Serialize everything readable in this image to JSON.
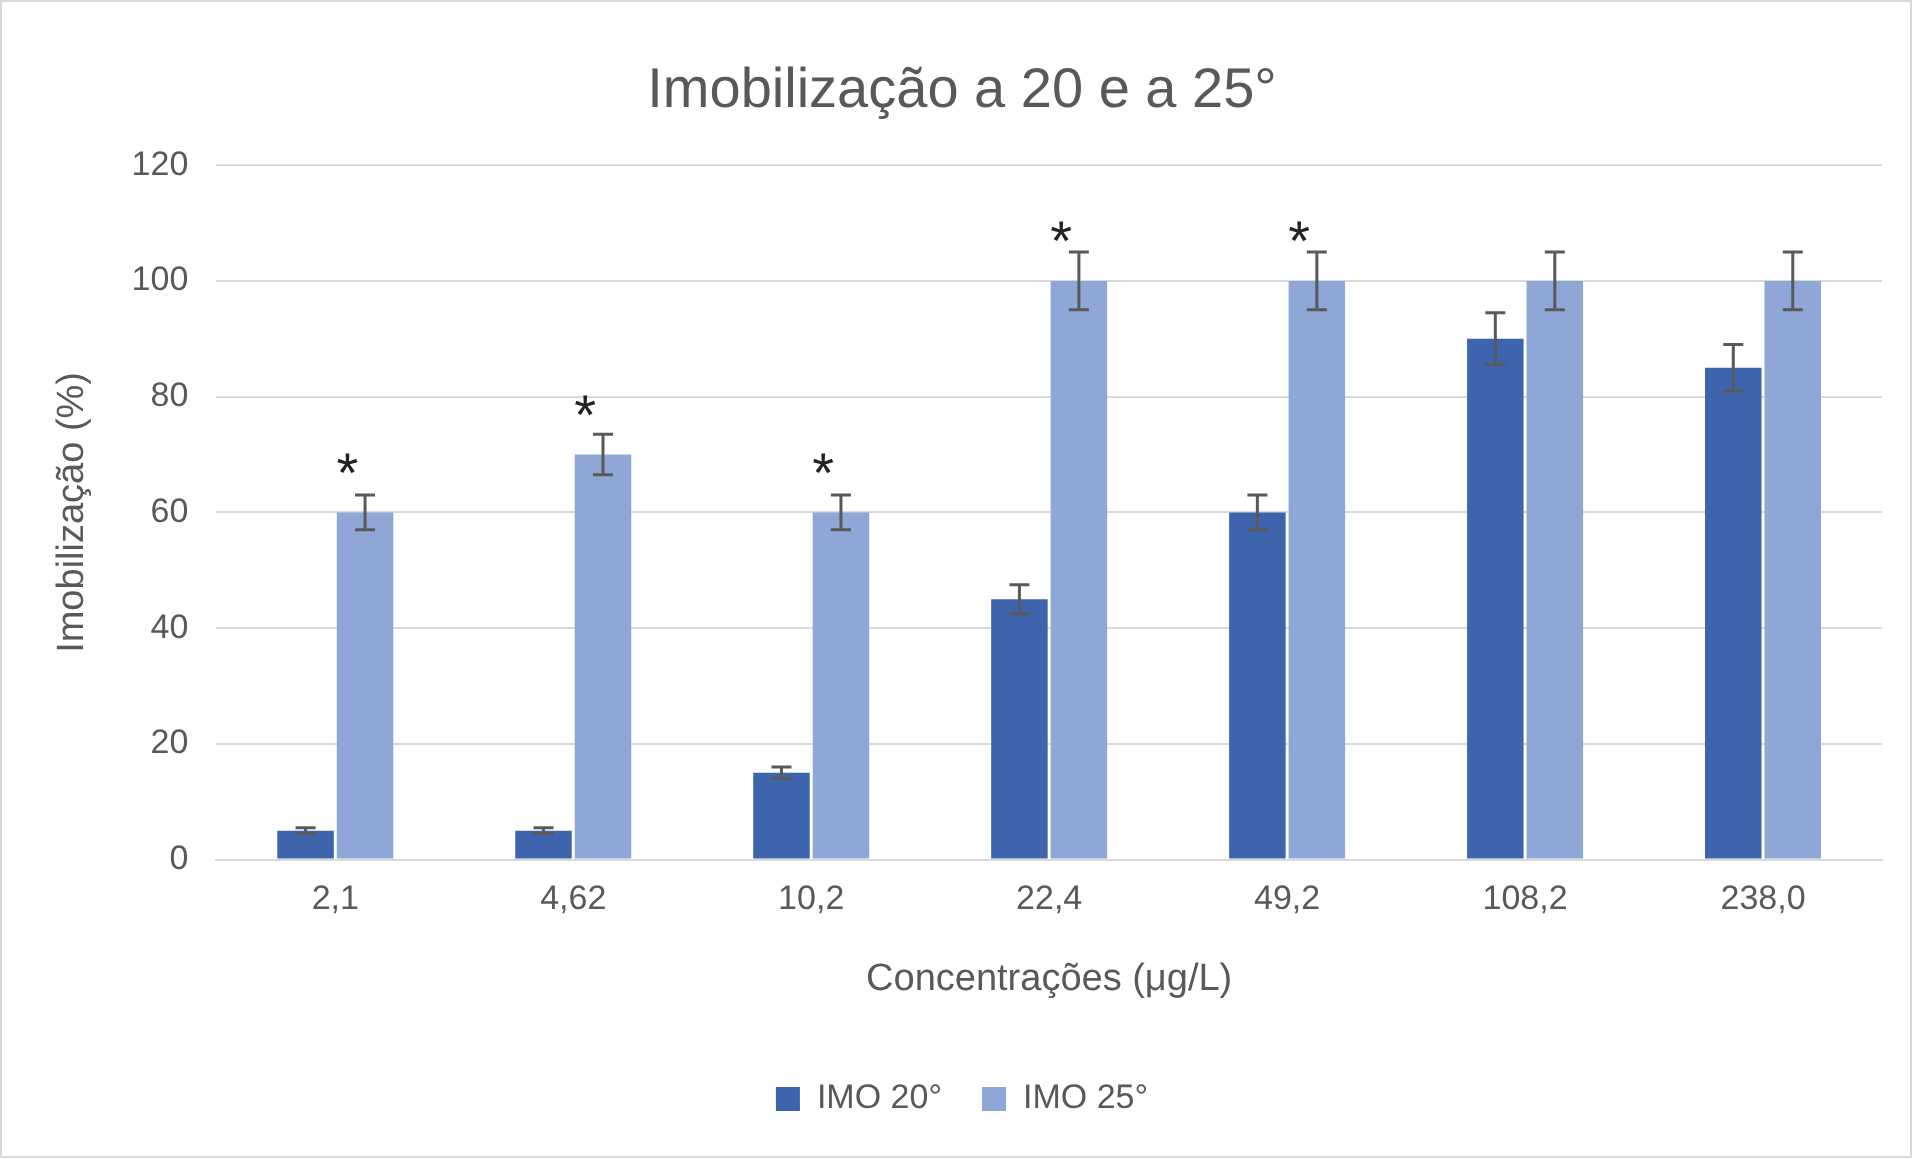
{
  "chart_data": {
    "type": "bar",
    "title": "Imobilização a 20 e a 25°",
    "xlabel": "Concentrações (μg/L)",
    "ylabel": "Imobilização (%)",
    "categories": [
      "2,1",
      "4,62",
      "10,2",
      "22,4",
      "49,2",
      "108,2",
      "238,0"
    ],
    "series": [
      {
        "name": "IMO 20°",
        "color": "#3e64ae",
        "values": [
          5,
          5,
          15,
          45,
          60,
          90,
          85
        ],
        "errors": [
          0.5,
          0.5,
          1,
          2.5,
          3,
          4.5,
          4
        ]
      },
      {
        "name": "IMO 25°",
        "color": "#8fa7d6",
        "values": [
          60,
          70,
          60,
          100,
          100,
          100,
          100
        ],
        "errors": [
          3,
          3.5,
          3,
          5,
          5,
          5,
          5
        ]
      }
    ],
    "ylim": [
      0,
      120
    ],
    "yticks": [
      0,
      20,
      40,
      60,
      80,
      100,
      120
    ],
    "grid": "y",
    "legend": "bottom",
    "annotations": [
      {
        "text": "*",
        "x": "2,1",
        "y": 60
      },
      {
        "text": "*",
        "x": "4,62",
        "y": 70
      },
      {
        "text": "*",
        "x": "10,2",
        "y": 60
      },
      {
        "text": "*",
        "x": "22,4",
        "y": 100
      },
      {
        "text": "*",
        "x": "49,2",
        "y": 100
      }
    ]
  }
}
